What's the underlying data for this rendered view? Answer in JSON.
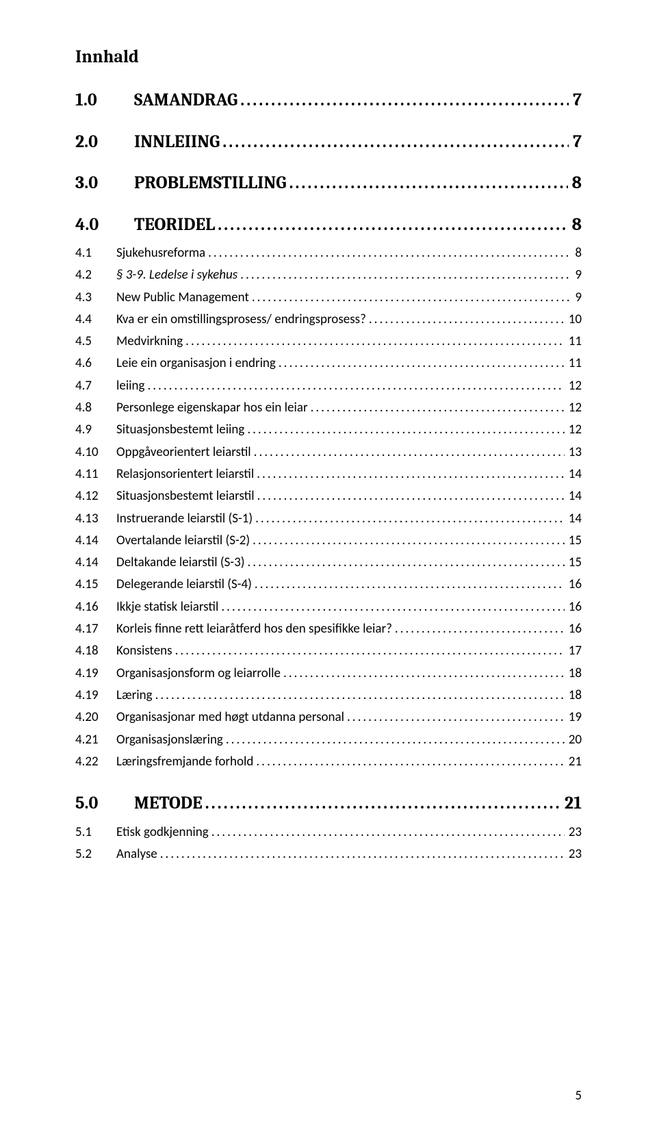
{
  "title": "Innhald",
  "page_number": "5",
  "colors": {
    "text": "#000000",
    "background": "#ffffff"
  },
  "typography": {
    "title_fontsize": 26,
    "title_weight": "bold",
    "heading_fontsize": 26,
    "heading_weight": "bold",
    "heading_family": "Cambria",
    "sub_fontsize": 19,
    "sub_family": "Calibri"
  },
  "sections": [
    {
      "num": "1.0",
      "label": "SAMANDRAG",
      "page": "7",
      "subs": []
    },
    {
      "num": "2.0",
      "label": "INNLEIING",
      "page": "7",
      "subs": []
    },
    {
      "num": "3.0",
      "label": "PROBLEMSTILLING",
      "page": "8",
      "subs": []
    },
    {
      "num": "4.0",
      "label": "TEORIDEL",
      "page": "8",
      "subs": [
        {
          "num": "4.1",
          "label": "Sjukehusreforma",
          "page": "8",
          "italic": false
        },
        {
          "num": "4.2",
          "label": "§ 3-9. Ledelse i sykehus",
          "page": "9",
          "italic": true
        },
        {
          "num": "4.3",
          "label": "New Public Management",
          "page": "9",
          "italic": false
        },
        {
          "num": "4.4",
          "label": "Kva er ein omstillingsprosess/ endringsprosess?",
          "page": "10",
          "italic": false
        },
        {
          "num": "4.5",
          "label": "Medvirkning",
          "page": "11",
          "italic": false
        },
        {
          "num": "4.6",
          "label": "Leie ein organisasjon i endring",
          "page": "11",
          "italic": false
        },
        {
          "num": "4.7",
          "label": "leiing",
          "page": "12",
          "italic": false
        },
        {
          "num": "4.8",
          "label": "Personlege eigenskapar hos ein leiar",
          "page": "12",
          "italic": false
        },
        {
          "num": "4.9",
          "label": "Situasjonsbestemt leiing",
          "page": "12",
          "italic": false
        },
        {
          "num": "4.10",
          "label": "Oppgåveorientert leiarstil",
          "page": "13",
          "italic": false
        },
        {
          "num": "4.11",
          "label": "Relasjonsorientert leiarstil",
          "page": "14",
          "italic": false
        },
        {
          "num": "4.12",
          "label": "Situasjonsbestemt leiarstil",
          "page": "14",
          "italic": false
        },
        {
          "num": "4.13",
          "label": "Instruerande leiarstil (S-1)",
          "page": "14",
          "italic": false
        },
        {
          "num": "4.14",
          "label": "Overtalande leiarstil (S-2)",
          "page": "15",
          "italic": false
        },
        {
          "num": "4.14",
          "label": "Deltakande leiarstil (S-3)",
          "page": "15",
          "italic": false
        },
        {
          "num": "4.15",
          "label": "Delegerande leiarstil (S-4)",
          "page": "16",
          "italic": false
        },
        {
          "num": "4.16",
          "label": "Ikkje statisk leiarstil",
          "page": "16",
          "italic": false
        },
        {
          "num": "4.17",
          "label": "Korleis finne rett leiaråtferd hos den spesifikke leiar?",
          "page": "16",
          "italic": false
        },
        {
          "num": "4.18",
          "label": "Konsistens",
          "page": "17",
          "italic": false
        },
        {
          "num": "4.19",
          "label": "Organisasjonsform og leiarrolle",
          "page": "18",
          "italic": false
        },
        {
          "num": "4.19",
          "label": "Læring",
          "page": "18",
          "italic": false
        },
        {
          "num": "4.20",
          "label": "Organisasjonar med høgt utdanna personal",
          "page": "19",
          "italic": false
        },
        {
          "num": "4.21",
          "label": "Organisasjonslæring",
          "page": "20",
          "italic": false
        },
        {
          "num": "4.22",
          "label": "Læringsfremjande forhold",
          "page": "21",
          "italic": false
        }
      ]
    },
    {
      "num": "5.0",
      "label": "METODE",
      "page": "21",
      "subs": [
        {
          "num": "5.1",
          "label": "Etisk godkjenning",
          "page": "23",
          "italic": false
        },
        {
          "num": "5.2",
          "label": "Analyse",
          "page": "23",
          "italic": false
        }
      ]
    }
  ]
}
